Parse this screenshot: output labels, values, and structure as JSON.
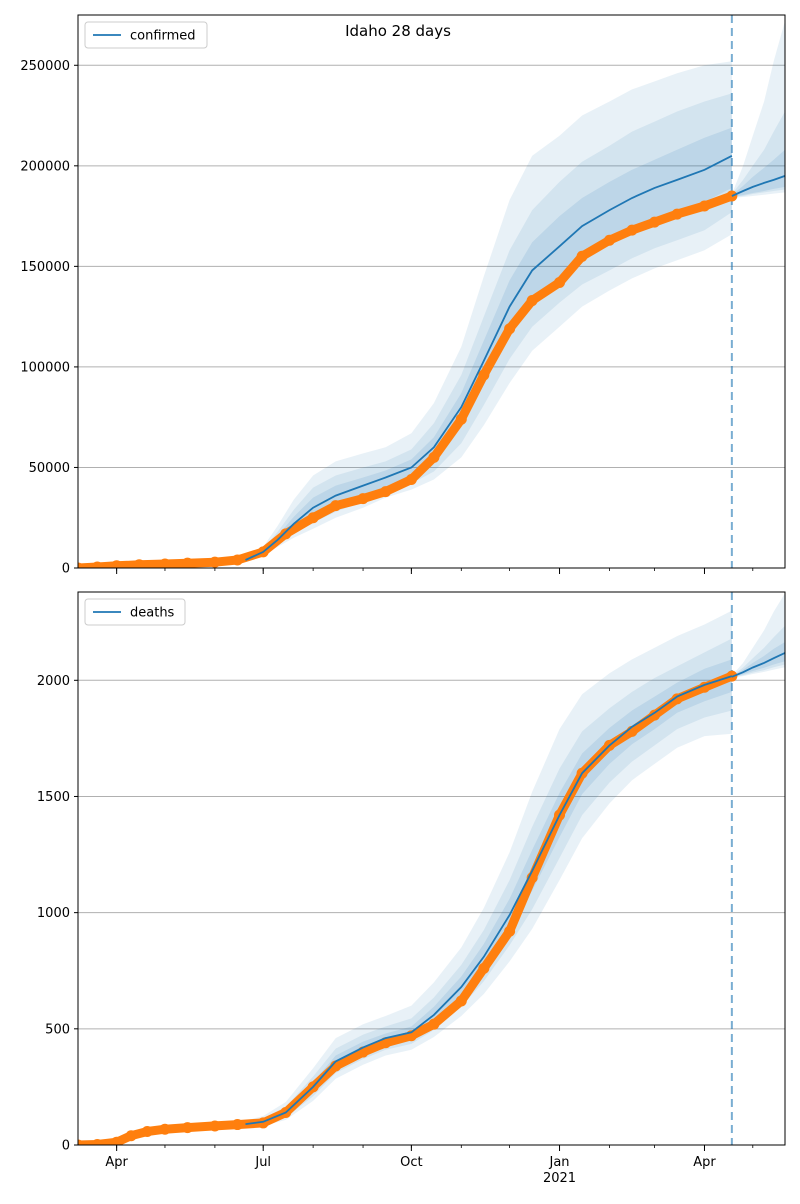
{
  "chart_data": {
    "type": "line",
    "title": "Idaho 28 days",
    "colors": {
      "model": "#1f77b4",
      "observed": "#ff7f0e",
      "band": "#1f77b4",
      "grid": "#b0b0b0",
      "forecast_line": "#1f77b4"
    },
    "x_axis": {
      "type": "date",
      "range": [
        "2020-03-08",
        "2021-05-21"
      ],
      "major_ticks": [
        {
          "date": "2020-04-01",
          "label": "Apr"
        },
        {
          "date": "2020-07-01",
          "label": "Jul"
        },
        {
          "date": "2020-10-01",
          "label": "Oct"
        },
        {
          "date": "2021-01-01",
          "label": "Jan"
        },
        {
          "date": "2021-04-01",
          "label": "Apr"
        }
      ],
      "year_label": {
        "date": "2021-01-01",
        "label": "2021"
      }
    },
    "forecast_start": "2021-04-18",
    "panels": [
      {
        "name": "confirmed",
        "legend": "confirmed",
        "legend_position": "upper left",
        "grid": "y",
        "ylim": [
          0,
          275000
        ],
        "yticks": [
          {
            "value": 0,
            "label": "0"
          },
          {
            "value": 50000,
            "label": "50000"
          },
          {
            "value": 100000,
            "label": "100000"
          },
          {
            "value": 150000,
            "label": "150000"
          },
          {
            "value": 200000,
            "label": "200000"
          },
          {
            "value": 250000,
            "label": "250000"
          }
        ],
        "model_series": {
          "dates": [
            "2020-06-20",
            "2020-07-01",
            "2020-07-10",
            "2020-07-20",
            "2020-08-01",
            "2020-08-15",
            "2020-09-01",
            "2020-09-15",
            "2020-10-01",
            "2020-10-15",
            "2020-11-01",
            "2020-11-15",
            "2020-12-01",
            "2020-12-15",
            "2021-01-01",
            "2021-01-15",
            "2021-02-01",
            "2021-02-15",
            "2021-03-01",
            "2021-03-15",
            "2021-04-01",
            "2021-04-18"
          ],
          "values": [
            4000,
            8000,
            14000,
            22000,
            30000,
            36000,
            41000,
            45000,
            50000,
            60000,
            80000,
            103000,
            130000,
            148000,
            160000,
            170000,
            178000,
            184000,
            189000,
            193000,
            198000,
            205000
          ],
          "upper_outer": [
            5500,
            10500,
            21000,
            34000,
            46000,
            53000,
            57000,
            60000,
            67000,
            82000,
            110000,
            145000,
            183000,
            205000,
            215000,
            225000,
            232000,
            238000,
            242000,
            246000,
            250000,
            252000
          ],
          "upper_mid": [
            5000,
            9500,
            18000,
            29000,
            40000,
            46000,
            50000,
            53000,
            59000,
            72000,
            96000,
            125000,
            158000,
            178000,
            192000,
            202000,
            210000,
            217000,
            222000,
            227000,
            232000,
            236000
          ],
          "upper_inner": [
            4500,
            8800,
            16000,
            25500,
            35000,
            41000,
            45000,
            48500,
            54000,
            65000,
            87000,
            113000,
            143000,
            162000,
            175000,
            184000,
            192000,
            198000,
            203000,
            208000,
            214000,
            219000
          ],
          "lower_inner": [
            3600,
            7300,
            12500,
            19000,
            25500,
            31000,
            36000,
            40000,
            45000,
            53000,
            70000,
            91000,
            116000,
            133000,
            145000,
            154000,
            162000,
            168000,
            173000,
            177000,
            182000,
            189000
          ],
          "lower_mid": [
            3300,
            6800,
            11500,
            17000,
            22500,
            28000,
            33000,
            37500,
            42000,
            48000,
            62000,
            81000,
            104000,
            120000,
            132000,
            141000,
            148000,
            154000,
            159000,
            163000,
            168000,
            177000
          ],
          "lower_outer": [
            3000,
            6200,
            10500,
            15000,
            19500,
            25000,
            30000,
            35000,
            39000,
            44000,
            55000,
            71000,
            92000,
            108000,
            120000,
            130000,
            138000,
            144000,
            149000,
            153000,
            158000,
            166000
          ]
        },
        "forecast_series": {
          "dates": [
            "2021-04-18",
            "2021-04-25",
            "2021-05-01",
            "2021-05-08",
            "2021-05-14",
            "2021-05-21"
          ],
          "values": [
            185000,
            187500,
            189500,
            191500,
            193000,
            195000
          ],
          "upper_outer": [
            186000,
            200000,
            215000,
            232000,
            252000,
            272000
          ],
          "upper_mid": [
            186000,
            193000,
            200000,
            208000,
            217000,
            227000
          ],
          "upper_inner": [
            185500,
            190000,
            194500,
            199000,
            203000,
            208000
          ],
          "lower_inner": [
            184500,
            185500,
            186500,
            187500,
            188500,
            189500
          ],
          "lower_mid": [
            184500,
            185000,
            186000,
            186800,
            187500,
            188200
          ],
          "lower_outer": [
            184000,
            184500,
            185000,
            185600,
            186200,
            186800
          ]
        },
        "observed": {
          "dates": [
            "2020-03-08",
            "2020-03-20",
            "2020-04-01",
            "2020-04-15",
            "2020-05-01",
            "2020-05-15",
            "2020-06-01",
            "2020-06-15",
            "2020-07-01",
            "2020-07-15",
            "2020-08-01",
            "2020-08-15",
            "2020-09-01",
            "2020-09-15",
            "2020-10-01",
            "2020-10-15",
            "2020-11-01",
            "2020-11-15",
            "2020-12-01",
            "2020-12-15",
            "2021-01-01",
            "2021-01-15",
            "2021-02-01",
            "2021-02-15",
            "2021-03-01",
            "2021-03-15",
            "2021-04-01",
            "2021-04-18"
          ],
          "values": [
            0,
            500,
            1100,
            1600,
            2000,
            2400,
            2900,
            4000,
            8000,
            17000,
            25000,
            31000,
            34500,
            38000,
            44000,
            55000,
            74000,
            96000,
            119000,
            133000,
            142000,
            155000,
            163000,
            168000,
            172000,
            176000,
            180000,
            185000
          ]
        }
      },
      {
        "name": "deaths",
        "legend": "deaths",
        "legend_position": "upper left",
        "grid": "y",
        "ylim": [
          0,
          2380
        ],
        "yticks": [
          {
            "value": 0,
            "label": "0"
          },
          {
            "value": 500,
            "label": "500"
          },
          {
            "value": 1000,
            "label": "1000"
          },
          {
            "value": 1500,
            "label": "1500"
          },
          {
            "value": 2000,
            "label": "2000"
          }
        ],
        "model_series": {
          "dates": [
            "2020-06-20",
            "2020-07-01",
            "2020-07-15",
            "2020-08-01",
            "2020-08-15",
            "2020-09-01",
            "2020-09-15",
            "2020-10-01",
            "2020-10-15",
            "2020-11-01",
            "2020-11-15",
            "2020-12-01",
            "2020-12-15",
            "2021-01-01",
            "2021-01-15",
            "2021-02-01",
            "2021-02-15",
            "2021-03-01",
            "2021-03-15",
            "2021-04-01",
            "2021-04-18"
          ],
          "values": [
            90,
            100,
            140,
            250,
            360,
            420,
            460,
            485,
            560,
            680,
            810,
            990,
            1180,
            1420,
            1600,
            1720,
            1800,
            1860,
            1930,
            1980,
            2018
          ],
          "upper_outer": [
            105,
            125,
            185,
            330,
            460,
            520,
            555,
            600,
            700,
            850,
            1020,
            1260,
            1520,
            1790,
            1940,
            2030,
            2090,
            2140,
            2190,
            2240,
            2300
          ],
          "upper_mid": [
            100,
            115,
            165,
            295,
            415,
            475,
            510,
            545,
            635,
            775,
            925,
            1140,
            1370,
            1620,
            1780,
            1880,
            1950,
            2010,
            2060,
            2120,
            2180
          ],
          "upper_inner": [
            95,
            108,
            152,
            270,
            385,
            445,
            480,
            510,
            595,
            725,
            865,
            1060,
            1270,
            1515,
            1685,
            1795,
            1870,
            1930,
            1990,
            2050,
            2090
          ],
          "lower_inner": [
            85,
            92,
            128,
            230,
            335,
            395,
            435,
            460,
            525,
            635,
            755,
            925,
            1095,
            1325,
            1510,
            1640,
            1725,
            1790,
            1860,
            1910,
            1950
          ],
          "lower_mid": [
            82,
            87,
            118,
            210,
            310,
            370,
            410,
            435,
            495,
            595,
            705,
            860,
            1015,
            1235,
            1420,
            1560,
            1650,
            1720,
            1790,
            1840,
            1870
          ],
          "lower_outer": [
            78,
            82,
            108,
            190,
            285,
            345,
            385,
            410,
            465,
            555,
            650,
            790,
            930,
            1140,
            1320,
            1470,
            1570,
            1640,
            1710,
            1760,
            1770
          ]
        },
        "forecast_series": {
          "dates": [
            "2021-04-18",
            "2021-04-25",
            "2021-05-01",
            "2021-05-08",
            "2021-05-14",
            "2021-05-21"
          ],
          "values": [
            2015,
            2035,
            2055,
            2075,
            2095,
            2118
          ],
          "upper_outer": [
            2020,
            2075,
            2140,
            2215,
            2295,
            2375
          ],
          "upper_mid": [
            2018,
            2055,
            2095,
            2140,
            2185,
            2235
          ],
          "upper_inner": [
            2017,
            2045,
            2075,
            2105,
            2135,
            2165
          ],
          "lower_inner": [
            2013,
            2026,
            2040,
            2054,
            2068,
            2082
          ],
          "lower_mid": [
            2012,
            2022,
            2033,
            2044,
            2056,
            2068
          ],
          "lower_outer": [
            2011,
            2018,
            2027,
            2036,
            2046,
            2056
          ]
        },
        "observed": {
          "dates": [
            "2020-03-08",
            "2020-03-20",
            "2020-04-01",
            "2020-04-10",
            "2020-04-20",
            "2020-05-01",
            "2020-05-15",
            "2020-06-01",
            "2020-06-15",
            "2020-07-01",
            "2020-07-15",
            "2020-08-01",
            "2020-08-15",
            "2020-09-01",
            "2020-09-15",
            "2020-10-01",
            "2020-10-15",
            "2020-11-01",
            "2020-11-15",
            "2020-12-01",
            "2020-12-15",
            "2021-01-01",
            "2021-01-15",
            "2021-02-01",
            "2021-02-15",
            "2021-03-01",
            "2021-03-15",
            "2021-04-01",
            "2021-04-18"
          ],
          "values": [
            0,
            2,
            12,
            40,
            58,
            68,
            75,
            82,
            88,
            95,
            140,
            250,
            340,
            400,
            440,
            470,
            520,
            620,
            760,
            920,
            1150,
            1420,
            1600,
            1720,
            1780,
            1850,
            1920,
            1970,
            2018
          ]
        }
      }
    ]
  }
}
